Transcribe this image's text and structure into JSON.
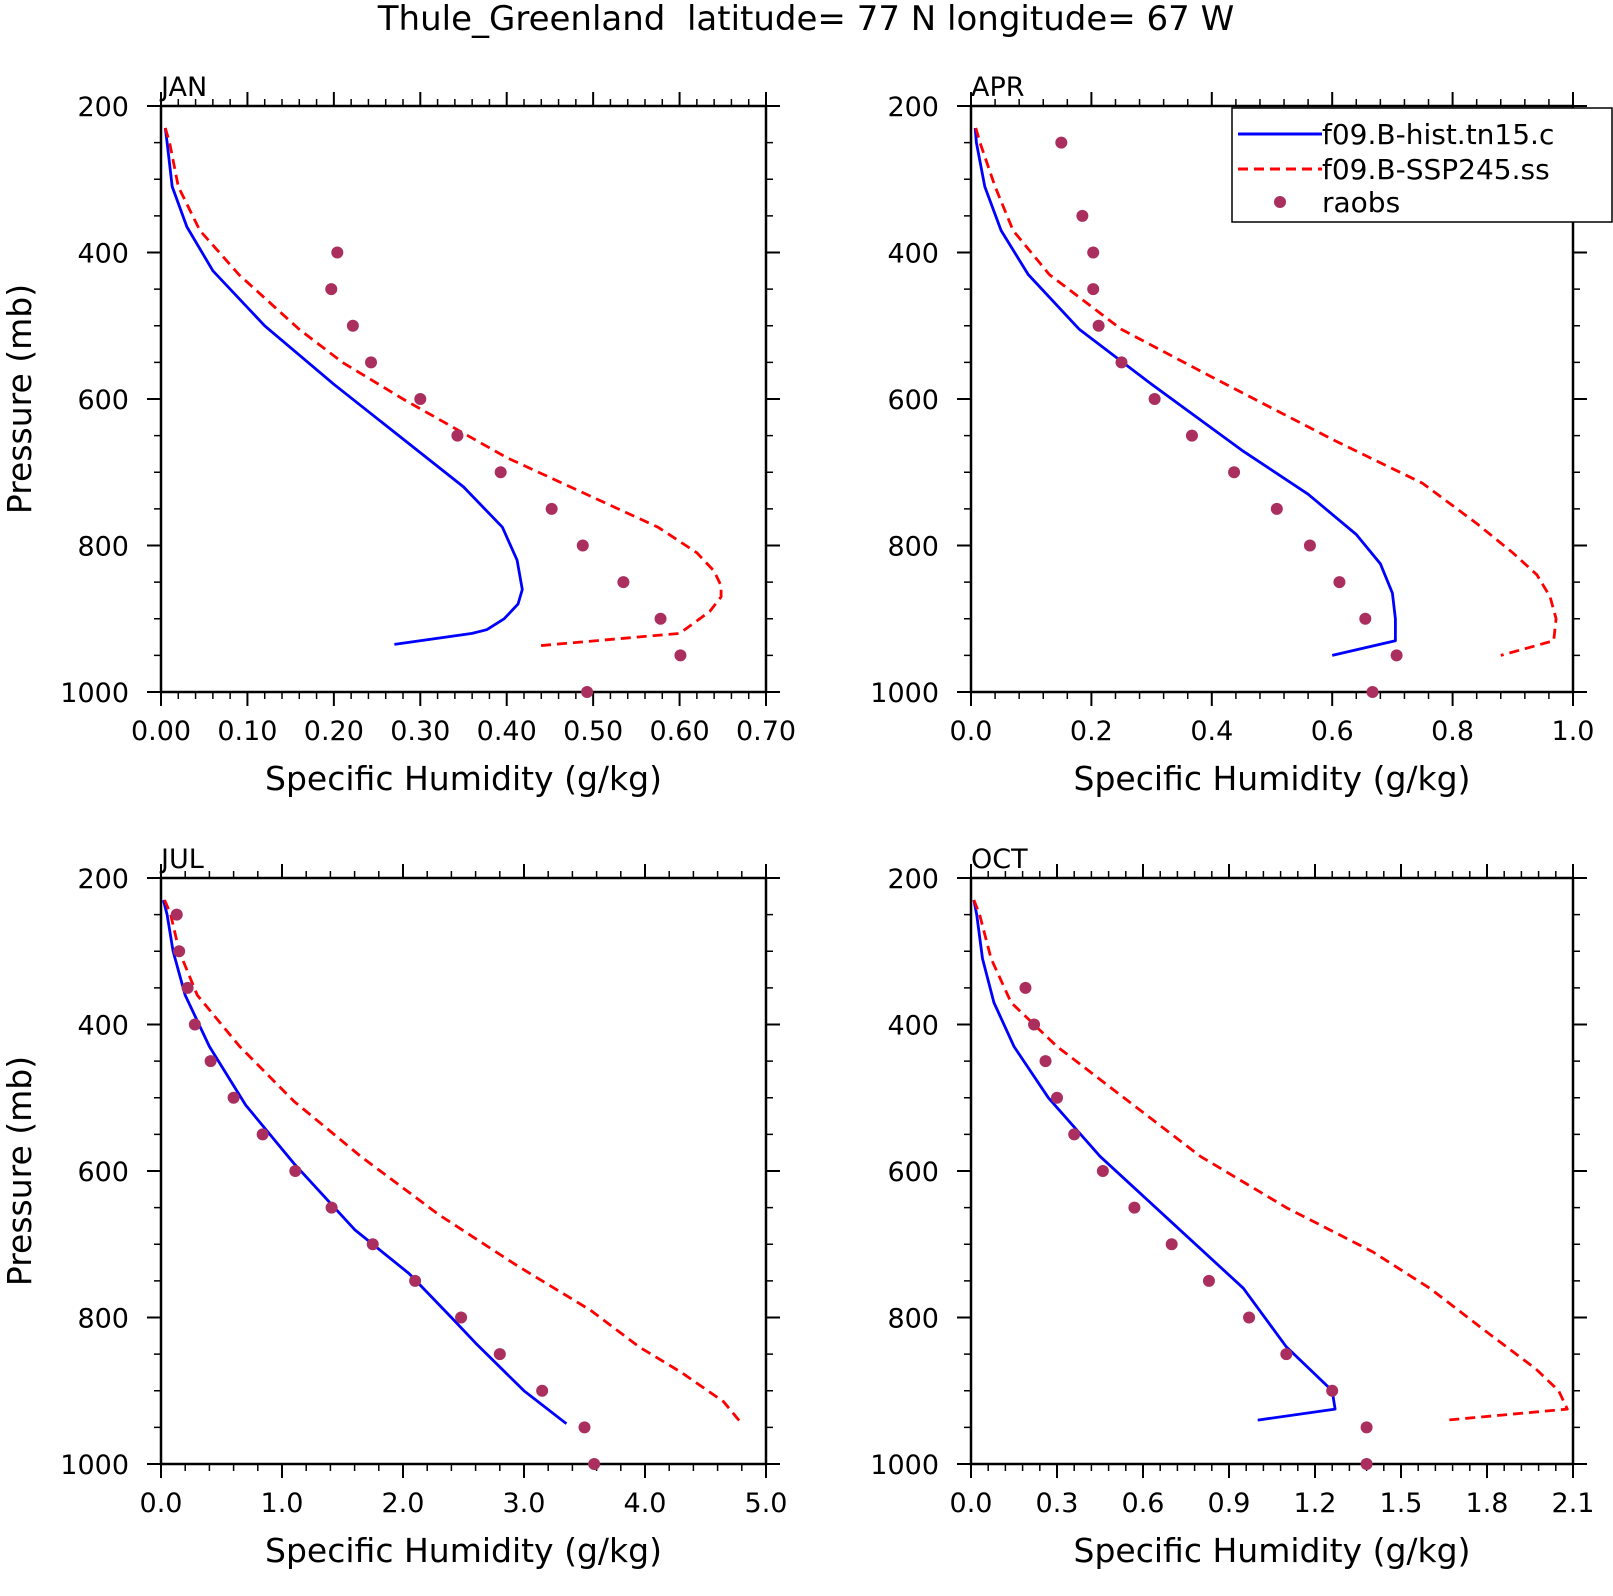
{
  "figure": {
    "title": "Thule_Greenland  latitude= 77 N longitude= 67 W"
  },
  "legend": {
    "entries": [
      {
        "label": "f09.B-hist.tn15.c",
        "color": "#0000ff",
        "style": "solid"
      },
      {
        "label": "f09.B-SSP245.ss",
        "color": "#ff0000",
        "style": "dashed"
      },
      {
        "label": "raobs",
        "color": "#aa2e5e",
        "style": "dot"
      }
    ]
  },
  "chart_data": [
    {
      "type": "line",
      "panel": "JAN",
      "xlabel": "Specific Humidity (g/kg)",
      "ylabel": "Pressure (mb)",
      "xlim": [
        0,
        0.7
      ],
      "ylim": [
        200,
        1000
      ],
      "y_reversed": true,
      "xticks": [
        "0.00",
        "0.10",
        "0.20",
        "0.30",
        "0.40",
        "0.50",
        "0.60",
        "0.70"
      ],
      "xtick_values": [
        0,
        0.1,
        0.2,
        0.3,
        0.4,
        0.5,
        0.6,
        0.7
      ],
      "yticks": [
        "200",
        "400",
        "600",
        "800",
        "1000"
      ],
      "ytick_values": [
        200,
        400,
        600,
        800,
        1000
      ],
      "series": [
        {
          "name": "f09.B-hist.tn15.c",
          "type": "line",
          "x": [
            0.005,
            0.007,
            0.013,
            0.03,
            0.06,
            0.12,
            0.2,
            0.35,
            0.395,
            0.412,
            0.418,
            0.413,
            0.397,
            0.377,
            0.36,
            0.27
          ],
          "y": [
            230,
            250,
            310,
            365,
            425,
            500,
            580,
            720,
            775,
            820,
            860,
            880,
            900,
            915,
            920,
            935
          ]
        },
        {
          "name": "f09.B-SSP245.ss",
          "type": "line",
          "x": [
            0.005,
            0.01,
            0.02,
            0.045,
            0.09,
            0.16,
            0.21,
            0.28,
            0.4,
            0.575,
            0.62,
            0.64,
            0.648,
            0.648,
            0.635,
            0.6,
            0.435
          ],
          "y": [
            230,
            250,
            310,
            370,
            430,
            505,
            550,
            600,
            680,
            775,
            810,
            835,
            855,
            870,
            890,
            920,
            937
          ]
        },
        {
          "name": "raobs",
          "type": "scatter",
          "x": [
            0.204,
            0.197,
            0.222,
            0.243,
            0.3,
            0.343,
            0.393,
            0.452,
            0.488,
            0.535,
            0.578,
            0.601,
            0.493
          ],
          "y": [
            400,
            450,
            500,
            550,
            600,
            650,
            700,
            750,
            800,
            850,
            900,
            950,
            1000
          ]
        }
      ]
    },
    {
      "type": "line",
      "panel": "APR",
      "xlabel": "Specific Humidity (g/kg)",
      "ylabel": "",
      "xlim": [
        0,
        1.0
      ],
      "ylim": [
        200,
        1000
      ],
      "y_reversed": true,
      "xticks": [
        "0.0",
        "0.2",
        "0.4",
        "0.6",
        "0.8",
        "1.0"
      ],
      "xtick_values": [
        0,
        0.2,
        0.4,
        0.6,
        0.8,
        1.0
      ],
      "yticks": [
        "200",
        "400",
        "600",
        "800",
        "1000"
      ],
      "ytick_values": [
        200,
        400,
        600,
        800,
        1000
      ],
      "series": [
        {
          "name": "f09.B-hist.tn15.c",
          "type": "line",
          "x": [
            0.007,
            0.009,
            0.023,
            0.05,
            0.095,
            0.18,
            0.3,
            0.45,
            0.56,
            0.64,
            0.68,
            0.7,
            0.705,
            0.705,
            0.6
          ],
          "y": [
            230,
            250,
            310,
            370,
            430,
            505,
            580,
            670,
            730,
            785,
            825,
            865,
            900,
            930,
            950
          ]
        },
        {
          "name": "f09.B-SSP245.ss",
          "type": "line",
          "x": [
            0.008,
            0.015,
            0.04,
            0.07,
            0.13,
            0.25,
            0.4,
            0.6,
            0.75,
            0.84,
            0.9,
            0.94,
            0.962,
            0.972,
            0.968,
            0.88
          ],
          "y": [
            230,
            250,
            310,
            370,
            430,
            505,
            570,
            655,
            715,
            770,
            810,
            840,
            870,
            900,
            930,
            950
          ]
        },
        {
          "name": "raobs",
          "type": "scatter",
          "x": [
            0.15,
            0.185,
            0.203,
            0.203,
            0.212,
            0.25,
            0.305,
            0.367,
            0.437,
            0.508,
            0.563,
            0.612,
            0.655,
            0.707,
            0.667
          ],
          "y": [
            250,
            350,
            400,
            450,
            500,
            550,
            600,
            650,
            700,
            750,
            800,
            850,
            900,
            950,
            1000
          ]
        }
      ]
    },
    {
      "type": "line",
      "panel": "JUL",
      "xlabel": "Specific Humidity (g/kg)",
      "ylabel": "Pressure (mb)",
      "xlim": [
        0,
        5.0
      ],
      "ylim": [
        200,
        1000
      ],
      "y_reversed": true,
      "xticks": [
        "0.0",
        "1.0",
        "2.0",
        "3.0",
        "4.0",
        "5.0"
      ],
      "xtick_values": [
        0,
        1,
        2,
        3,
        4,
        5
      ],
      "yticks": [
        "200",
        "400",
        "600",
        "800",
        "1000"
      ],
      "ytick_values": [
        200,
        400,
        600,
        800,
        1000
      ],
      "series": [
        {
          "name": "f09.B-hist.tn15.c",
          "type": "line",
          "x": [
            0.02,
            0.05,
            0.1,
            0.2,
            0.4,
            0.7,
            1.1,
            1.6,
            2.05,
            2.4,
            2.6,
            3.0,
            3.35
          ],
          "y": [
            230,
            250,
            300,
            360,
            430,
            510,
            590,
            680,
            740,
            800,
            835,
            900,
            945
          ]
        },
        {
          "name": "f09.B-SSP245.ss",
          "type": "line",
          "x": [
            0.03,
            0.08,
            0.15,
            0.3,
            0.65,
            1.1,
            1.65,
            2.3,
            2.95,
            3.55,
            3.95,
            4.3,
            4.65,
            4.8
          ],
          "y": [
            230,
            250,
            300,
            360,
            430,
            505,
            580,
            660,
            730,
            790,
            840,
            875,
            915,
            945
          ]
        },
        {
          "name": "raobs",
          "type": "scatter",
          "x": [
            0.13,
            0.15,
            0.22,
            0.28,
            0.41,
            0.6,
            0.84,
            1.11,
            1.41,
            1.75,
            2.1,
            2.48,
            2.8,
            3.15,
            3.5,
            3.58
          ],
          "y": [
            250,
            300,
            350,
            400,
            450,
            500,
            550,
            600,
            650,
            700,
            750,
            800,
            850,
            900,
            950,
            1000
          ]
        }
      ]
    },
    {
      "type": "line",
      "panel": "OCT",
      "xlabel": "Specific Humidity (g/kg)",
      "ylabel": "",
      "xlim": [
        0,
        2.1
      ],
      "ylim": [
        200,
        1000
      ],
      "y_reversed": true,
      "xticks": [
        "0.0",
        "0.3",
        "0.6",
        "0.9",
        "1.2",
        "1.5",
        "1.8",
        "2.1"
      ],
      "xtick_values": [
        0,
        0.3,
        0.6,
        0.9,
        1.2,
        1.5,
        1.8,
        2.1
      ],
      "yticks": [
        "200",
        "400",
        "600",
        "800",
        "1000"
      ],
      "ytick_values": [
        200,
        400,
        600,
        800,
        1000
      ],
      "series": [
        {
          "name": "f09.B-hist.tn15.c",
          "type": "line",
          "x": [
            0.01,
            0.02,
            0.04,
            0.08,
            0.15,
            0.27,
            0.45,
            0.7,
            0.95,
            1.1,
            1.26,
            1.27,
            1.0
          ],
          "y": [
            230,
            250,
            310,
            370,
            430,
            500,
            580,
            670,
            760,
            840,
            900,
            925,
            940
          ]
        },
        {
          "name": "f09.B-SSP245.ss",
          "type": "line",
          "x": [
            0.01,
            0.03,
            0.07,
            0.14,
            0.3,
            0.55,
            0.8,
            1.1,
            1.4,
            1.6,
            1.8,
            1.97,
            2.05,
            2.08,
            1.66
          ],
          "y": [
            230,
            250,
            310,
            370,
            430,
            505,
            580,
            650,
            710,
            760,
            820,
            870,
            900,
            925,
            940
          ]
        },
        {
          "name": "raobs",
          "type": "scatter",
          "x": [
            0.19,
            0.22,
            0.26,
            0.3,
            0.36,
            0.46,
            0.57,
            0.7,
            0.83,
            0.97,
            1.1,
            1.26,
            1.38,
            1.38
          ],
          "y": [
            350,
            400,
            450,
            500,
            550,
            600,
            650,
            700,
            750,
            800,
            850,
            900,
            950,
            1000
          ]
        }
      ]
    }
  ]
}
